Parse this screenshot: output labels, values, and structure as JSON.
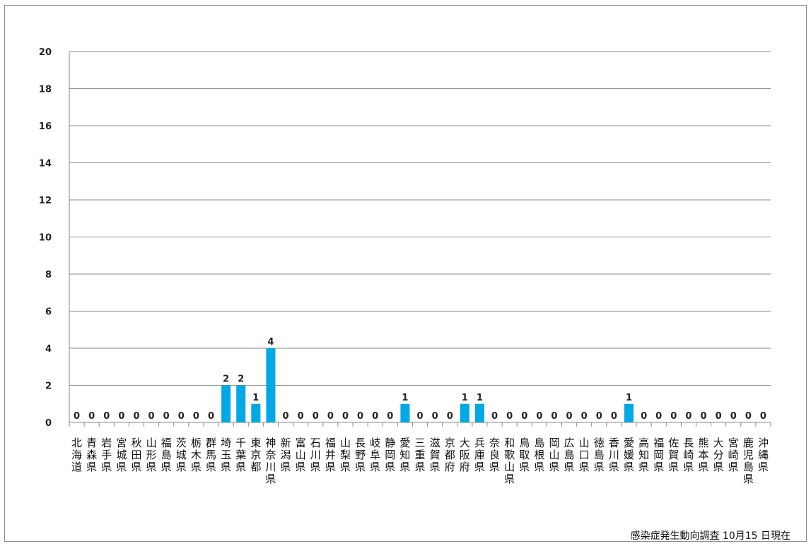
{
  "chart_data": {
    "type": "bar",
    "categories": [
      "北海道",
      "青森県",
      "岩手県",
      "宮城県",
      "秋田県",
      "山形県",
      "福島県",
      "茨城県",
      "栃木県",
      "群馬県",
      "埼玉県",
      "千葉県",
      "東京都",
      "神奈川県",
      "新潟県",
      "富山県",
      "石川県",
      "福井県",
      "山梨県",
      "長野県",
      "岐阜県",
      "静岡県",
      "愛知県",
      "三重県",
      "滋賀県",
      "京都府",
      "大阪府",
      "兵庫県",
      "奈良県",
      "和歌山県",
      "鳥取県",
      "島根県",
      "岡山県",
      "広島県",
      "山口県",
      "徳島県",
      "香川県",
      "愛媛県",
      "高知県",
      "福岡県",
      "佐賀県",
      "長崎県",
      "熊本県",
      "大分県",
      "宮崎県",
      "鹿児島県",
      "沖縄県"
    ],
    "values": [
      0,
      0,
      0,
      0,
      0,
      0,
      0,
      0,
      0,
      0,
      2,
      2,
      1,
      4,
      0,
      0,
      0,
      0,
      0,
      0,
      0,
      0,
      1,
      0,
      0,
      0,
      1,
      1,
      0,
      0,
      0,
      0,
      0,
      0,
      0,
      0,
      0,
      1,
      0,
      0,
      0,
      0,
      0,
      0,
      0,
      0,
      0
    ],
    "ylim": [
      0,
      20
    ],
    "yticks": [
      0,
      2,
      4,
      6,
      8,
      10,
      12,
      14,
      16,
      18,
      20
    ],
    "grid": true,
    "legend": "none",
    "bar_color": "#00a8e6",
    "data_labels": true
  },
  "note": "感染症発生動向調査",
  "date": "10月15 日現在"
}
